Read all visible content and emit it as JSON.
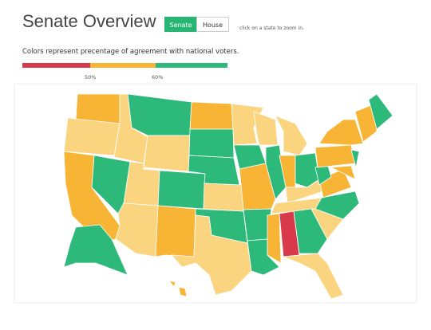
{
  "header": {
    "title": "Senate Overview",
    "buttons": [
      "Senate",
      "House"
    ],
    "hint": "click on a state to zoom in."
  },
  "legend": {
    "caption": "Colors represent precentage of agreement with national voters.",
    "labels": [
      "50%",
      "60%"
    ]
  }
}
